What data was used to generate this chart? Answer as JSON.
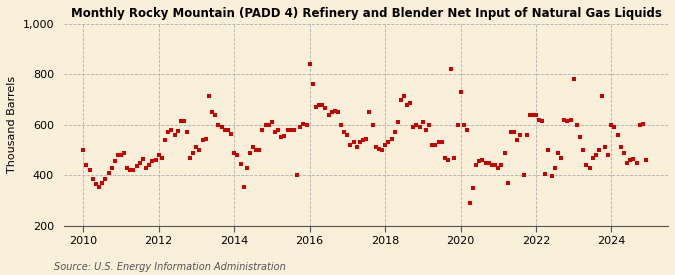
{
  "title": "Monthly Rocky Mountain (PADD 4) Refinery and Blender Net Input of Natural Gas Liquids",
  "ylabel": "Thousand Barrels",
  "source": "Source: U.S. Energy Information Administration",
  "background_color": "#faefd8",
  "dot_color": "#cc0000",
  "ylim": [
    200,
    1000
  ],
  "yticks": [
    200,
    400,
    600,
    800,
    1000
  ],
  "ytick_labels": [
    "200",
    "400",
    "600",
    "800",
    "1,000"
  ],
  "xlim_start": 2009.5,
  "xlim_end": 2025.5,
  "xticks": [
    2010,
    2012,
    2014,
    2016,
    2018,
    2020,
    2022,
    2024
  ],
  "data": [
    [
      2010.0,
      500
    ],
    [
      2010.08,
      440
    ],
    [
      2010.17,
      420
    ],
    [
      2010.25,
      385
    ],
    [
      2010.33,
      365
    ],
    [
      2010.42,
      355
    ],
    [
      2010.5,
      370
    ],
    [
      2010.58,
      385
    ],
    [
      2010.67,
      410
    ],
    [
      2010.75,
      430
    ],
    [
      2010.83,
      455
    ],
    [
      2010.92,
      480
    ],
    [
      2011.0,
      480
    ],
    [
      2011.08,
      490
    ],
    [
      2011.17,
      430
    ],
    [
      2011.25,
      420
    ],
    [
      2011.33,
      420
    ],
    [
      2011.42,
      435
    ],
    [
      2011.5,
      450
    ],
    [
      2011.58,
      465
    ],
    [
      2011.67,
      430
    ],
    [
      2011.75,
      440
    ],
    [
      2011.83,
      455
    ],
    [
      2011.92,
      460
    ],
    [
      2012.0,
      480
    ],
    [
      2012.08,
      470
    ],
    [
      2012.17,
      540
    ],
    [
      2012.25,
      570
    ],
    [
      2012.33,
      580
    ],
    [
      2012.42,
      560
    ],
    [
      2012.5,
      575
    ],
    [
      2012.58,
      615
    ],
    [
      2012.67,
      615
    ],
    [
      2012.75,
      570
    ],
    [
      2012.83,
      470
    ],
    [
      2012.92,
      490
    ],
    [
      2013.0,
      510
    ],
    [
      2013.08,
      500
    ],
    [
      2013.17,
      540
    ],
    [
      2013.25,
      545
    ],
    [
      2013.33,
      715
    ],
    [
      2013.42,
      650
    ],
    [
      2013.5,
      640
    ],
    [
      2013.58,
      600
    ],
    [
      2013.67,
      590
    ],
    [
      2013.75,
      580
    ],
    [
      2013.83,
      580
    ],
    [
      2013.92,
      565
    ],
    [
      2014.0,
      490
    ],
    [
      2014.08,
      480
    ],
    [
      2014.17,
      445
    ],
    [
      2014.25,
      355
    ],
    [
      2014.33,
      430
    ],
    [
      2014.42,
      490
    ],
    [
      2014.5,
      510
    ],
    [
      2014.58,
      500
    ],
    [
      2014.67,
      500
    ],
    [
      2014.75,
      580
    ],
    [
      2014.83,
      600
    ],
    [
      2014.92,
      600
    ],
    [
      2015.0,
      610
    ],
    [
      2015.08,
      570
    ],
    [
      2015.17,
      580
    ],
    [
      2015.25,
      550
    ],
    [
      2015.33,
      555
    ],
    [
      2015.42,
      580
    ],
    [
      2015.5,
      580
    ],
    [
      2015.58,
      580
    ],
    [
      2015.67,
      400
    ],
    [
      2015.75,
      590
    ],
    [
      2015.83,
      605
    ],
    [
      2015.92,
      600
    ],
    [
      2016.0,
      840
    ],
    [
      2016.08,
      760
    ],
    [
      2016.17,
      670
    ],
    [
      2016.25,
      680
    ],
    [
      2016.33,
      680
    ],
    [
      2016.42,
      665
    ],
    [
      2016.5,
      640
    ],
    [
      2016.58,
      650
    ],
    [
      2016.67,
      655
    ],
    [
      2016.75,
      650
    ],
    [
      2016.83,
      600
    ],
    [
      2016.92,
      570
    ],
    [
      2017.0,
      560
    ],
    [
      2017.08,
      520
    ],
    [
      2017.17,
      530
    ],
    [
      2017.25,
      510
    ],
    [
      2017.33,
      530
    ],
    [
      2017.42,
      540
    ],
    [
      2017.5,
      545
    ],
    [
      2017.58,
      650
    ],
    [
      2017.67,
      600
    ],
    [
      2017.75,
      510
    ],
    [
      2017.83,
      505
    ],
    [
      2017.92,
      500
    ],
    [
      2018.0,
      520
    ],
    [
      2018.08,
      530
    ],
    [
      2018.17,
      545
    ],
    [
      2018.25,
      570
    ],
    [
      2018.33,
      610
    ],
    [
      2018.42,
      700
    ],
    [
      2018.5,
      715
    ],
    [
      2018.58,
      680
    ],
    [
      2018.67,
      685
    ],
    [
      2018.75,
      590
    ],
    [
      2018.83,
      600
    ],
    [
      2018.92,
      590
    ],
    [
      2019.0,
      610
    ],
    [
      2019.08,
      580
    ],
    [
      2019.17,
      600
    ],
    [
      2019.25,
      520
    ],
    [
      2019.33,
      520
    ],
    [
      2019.42,
      530
    ],
    [
      2019.5,
      530
    ],
    [
      2019.58,
      470
    ],
    [
      2019.67,
      460
    ],
    [
      2019.75,
      820
    ],
    [
      2019.83,
      470
    ],
    [
      2019.92,
      600
    ],
    [
      2020.0,
      730
    ],
    [
      2020.08,
      600
    ],
    [
      2020.17,
      580
    ],
    [
      2020.25,
      290
    ],
    [
      2020.33,
      350
    ],
    [
      2020.42,
      440
    ],
    [
      2020.5,
      455
    ],
    [
      2020.58,
      460
    ],
    [
      2020.67,
      450
    ],
    [
      2020.75,
      450
    ],
    [
      2020.83,
      440
    ],
    [
      2020.92,
      440
    ],
    [
      2021.0,
      430
    ],
    [
      2021.08,
      440
    ],
    [
      2021.17,
      490
    ],
    [
      2021.25,
      370
    ],
    [
      2021.33,
      570
    ],
    [
      2021.42,
      570
    ],
    [
      2021.5,
      540
    ],
    [
      2021.58,
      560
    ],
    [
      2021.67,
      400
    ],
    [
      2021.75,
      560
    ],
    [
      2021.83,
      640
    ],
    [
      2021.92,
      640
    ],
    [
      2022.0,
      640
    ],
    [
      2022.08,
      620
    ],
    [
      2022.17,
      615
    ],
    [
      2022.25,
      405
    ],
    [
      2022.33,
      500
    ],
    [
      2022.42,
      395
    ],
    [
      2022.5,
      430
    ],
    [
      2022.58,
      490
    ],
    [
      2022.67,
      470
    ],
    [
      2022.75,
      620
    ],
    [
      2022.83,
      615
    ],
    [
      2022.92,
      620
    ],
    [
      2023.0,
      780
    ],
    [
      2023.08,
      600
    ],
    [
      2023.17,
      550
    ],
    [
      2023.25,
      500
    ],
    [
      2023.33,
      440
    ],
    [
      2023.42,
      430
    ],
    [
      2023.5,
      470
    ],
    [
      2023.58,
      480
    ],
    [
      2023.67,
      500
    ],
    [
      2023.75,
      715
    ],
    [
      2023.83,
      510
    ],
    [
      2023.92,
      480
    ],
    [
      2024.0,
      600
    ],
    [
      2024.08,
      590
    ],
    [
      2024.17,
      560
    ],
    [
      2024.25,
      510
    ],
    [
      2024.33,
      490
    ],
    [
      2024.42,
      450
    ],
    [
      2024.5,
      460
    ],
    [
      2024.58,
      465
    ],
    [
      2024.67,
      450
    ],
    [
      2024.75,
      600
    ],
    [
      2024.83,
      605
    ],
    [
      2024.92,
      460
    ]
  ]
}
